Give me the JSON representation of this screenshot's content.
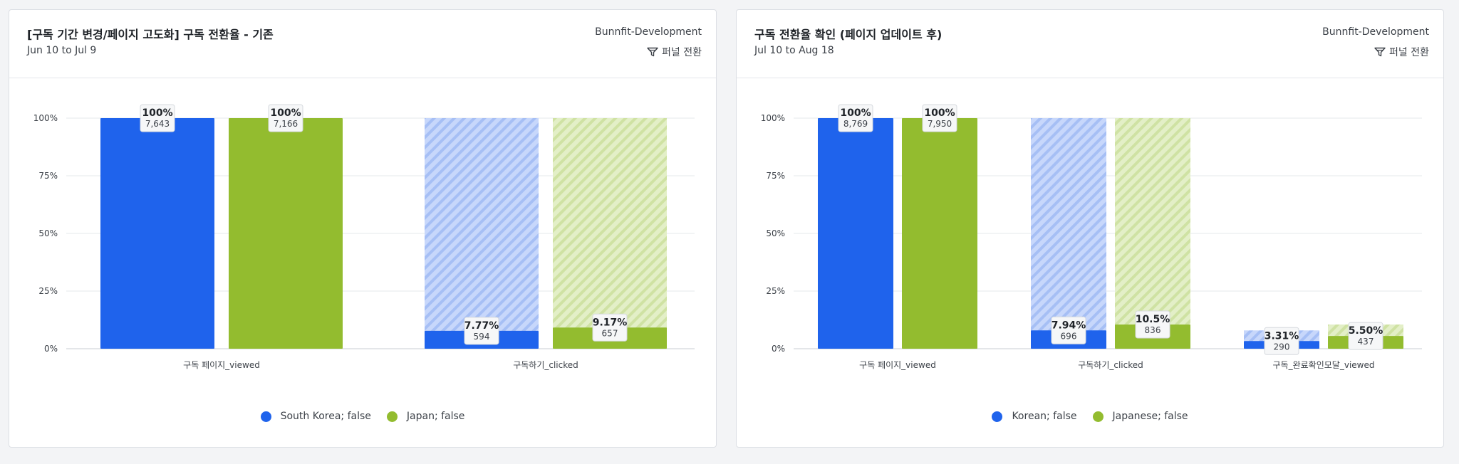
{
  "theme": {
    "blue": "#1f63ec",
    "green": "#93bc2f",
    "blue_hatch_light": "#c7d7fb",
    "green_hatch_light": "#e3efc7",
    "background": "#f3f4f6"
  },
  "cards": [
    {
      "title": "[구독 기간 변경/페이지 고도화] 구독 전환율 - 기존",
      "date_range": "Jun 10 to Jul 9",
      "source": "Bunnfit-Development",
      "funnel_label": "퍼널 전환",
      "funnel_icon": "funnel-icon",
      "legend": [
        {
          "label": "South Korea; false",
          "color": "#1f63ec"
        },
        {
          "label": "Japan; false",
          "color": "#93bc2f"
        }
      ],
      "chart_data": {
        "type": "bar",
        "subtype": "funnel-conversion",
        "title": "[구독 기간 변경/페이지 고도화] 구독 전환율 - 기존",
        "xlabel": "",
        "ylabel": "",
        "y_ticks": [
          "0%",
          "25%",
          "50%",
          "75%",
          "100%"
        ],
        "ylim": [
          0,
          100
        ],
        "grid": true,
        "legend_position": "bottom",
        "categories": [
          "구독 페이지_viewed",
          "구독하기_clicked"
        ],
        "series": [
          {
            "name": "South Korea; false",
            "color": "#1f63ec",
            "values": [
              100,
              7.77
            ],
            "labels": [
              "100%",
              "7.77%"
            ],
            "counts": [
              "7,643",
              "594"
            ]
          },
          {
            "name": "Japan; false",
            "color": "#93bc2f",
            "values": [
              100,
              9.17
            ],
            "labels": [
              "100%",
              "9.17%"
            ],
            "counts": [
              "7,166",
              "657"
            ]
          }
        ]
      }
    },
    {
      "title": "구독 전환율 확인 (페이지 업데이트 후)",
      "date_range": "Jul 10 to Aug 18",
      "source": "Bunnfit-Development",
      "funnel_label": "퍼널 전환",
      "funnel_icon": "funnel-icon",
      "legend": [
        {
          "label": "Korean; false",
          "color": "#1f63ec"
        },
        {
          "label": "Japanese; false",
          "color": "#93bc2f"
        }
      ],
      "chart_data": {
        "type": "bar",
        "subtype": "funnel-conversion",
        "title": "구독 전환율 확인 (페이지 업데이트 후)",
        "xlabel": "",
        "ylabel": "",
        "y_ticks": [
          "0%",
          "25%",
          "50%",
          "75%",
          "100%"
        ],
        "ylim": [
          0,
          100
        ],
        "grid": true,
        "legend_position": "bottom",
        "categories": [
          "구독 페이지_viewed",
          "구독하기_clicked",
          "구독_완료확인모달_viewed"
        ],
        "series": [
          {
            "name": "Korean; false",
            "color": "#1f63ec",
            "values": [
              100,
              7.94,
              3.31
            ],
            "labels": [
              "100%",
              "7.94%",
              "3.31%"
            ],
            "counts": [
              "8,769",
              "696",
              "290"
            ]
          },
          {
            "name": "Japanese; false",
            "color": "#93bc2f",
            "values": [
              100,
              10.5,
              5.5
            ],
            "labels": [
              "100%",
              "10.5%",
              "5.50%"
            ],
            "counts": [
              "7,950",
              "836",
              "437"
            ]
          }
        ]
      }
    }
  ]
}
